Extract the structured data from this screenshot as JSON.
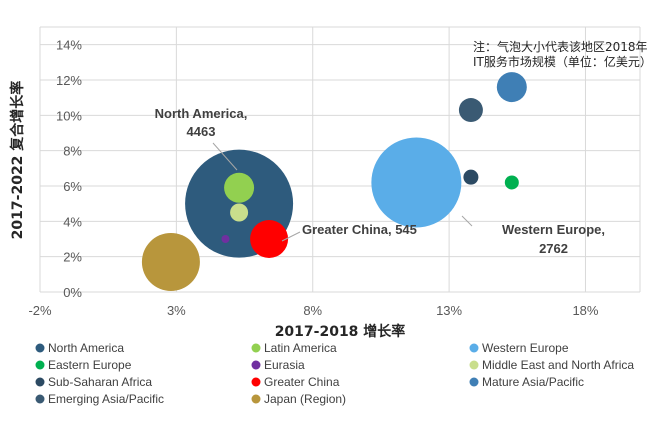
{
  "chart_data": {
    "type": "bubble",
    "xlabel": "2017-2018 增长率",
    "ylabel": "2017-2022 复合增长率",
    "xlim": [
      -2,
      20
    ],
    "ylim": [
      0,
      15
    ],
    "x_ticks": [
      "-2%",
      "3%",
      "8%",
      "13%",
      "18%"
    ],
    "y_ticks": [
      "0%",
      "2%",
      "4%",
      "6%",
      "8%",
      "10%",
      "12%",
      "14%"
    ],
    "note_lines": [
      "注：气泡大小代表该地区2018年",
      "IT服务市场规模（单位：亿美元）"
    ],
    "grid": true,
    "legend_position": "bottom",
    "series": [
      {
        "name": "North America",
        "x": 5.3,
        "y": 5.0,
        "color": "#2e5b7d"
      },
      {
        "name": "Latin America",
        "x": 5.3,
        "y": 5.9,
        "color": "#92d050"
      },
      {
        "name": "Western Europe",
        "x": 11.8,
        "y": 6.2,
        "color": "#5aade8"
      },
      {
        "name": "Eastern Europe",
        "x": 15.3,
        "y": 6.2,
        "color": "#00b050"
      },
      {
        "name": "Eurasia",
        "x": 4.8,
        "y": 3.0,
        "color": "#7030a0"
      },
      {
        "name": "Middle East and North Africa",
        "x": 5.3,
        "y": 4.5,
        "color": "#c9de8c"
      },
      {
        "name": "Sub-Saharan Africa",
        "x": 13.8,
        "y": 6.5,
        "color": "#2c4a63"
      },
      {
        "name": "Greater China",
        "x": 6.4,
        "y": 3.0,
        "color": "#ff0000"
      },
      {
        "name": "Mature Asia/Pacific",
        "x": 15.3,
        "y": 11.6,
        "color": "#3f7fb5"
      },
      {
        "name": "Emerging Asia/Pacific",
        "x": 13.8,
        "y": 10.3,
        "color": "#3a5a73"
      },
      {
        "name": "Japan (Region)",
        "x": 2.8,
        "y": 1.7,
        "color": "#b8963c"
      }
    ],
    "annotations": [
      {
        "label": "North America,",
        "value": "4463"
      },
      {
        "label": "Greater China, 545"
      },
      {
        "label": "Western Europe,",
        "value": "2762"
      }
    ]
  }
}
